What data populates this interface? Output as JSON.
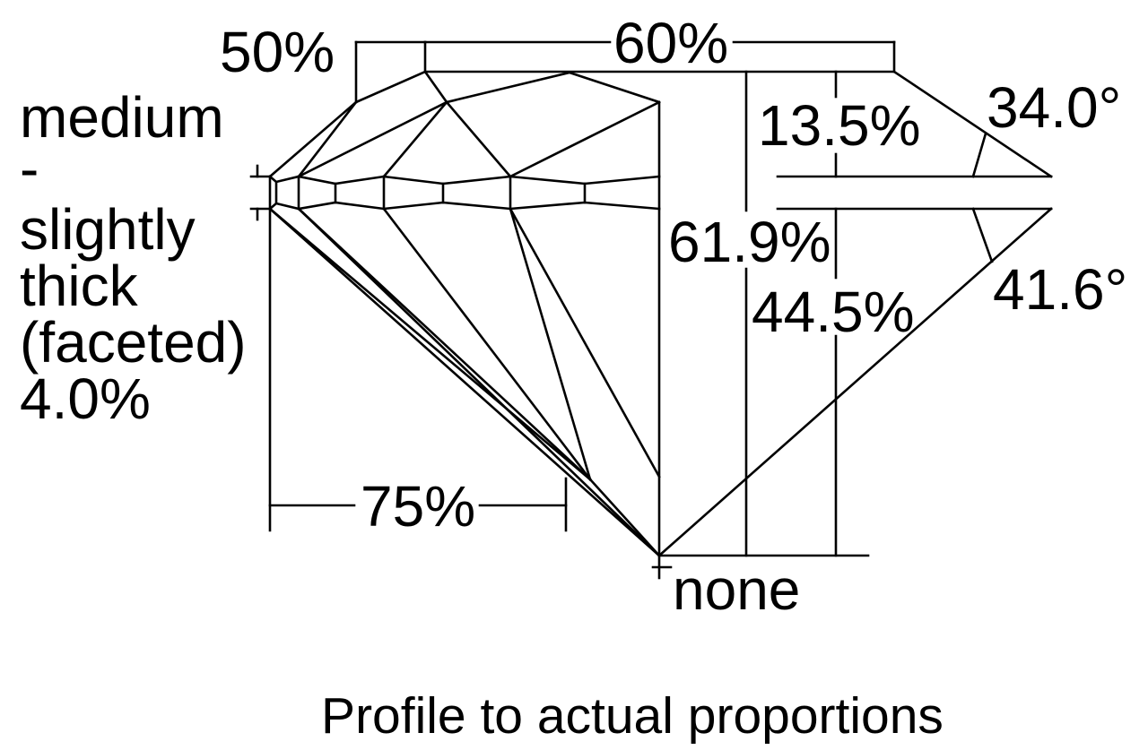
{
  "labels": {
    "table_width_pct": "60%",
    "star_length_pct": "50%",
    "girdle": [
      "medium",
      "-",
      "slightly",
      "thick",
      "(faceted)",
      "4.0%"
    ],
    "crown_height_pct": "13.5%",
    "crown_angle": "34.0°",
    "total_depth_pct": "61.9%",
    "pavilion_angle": "41.6°",
    "pavilion_depth_pct": "44.5%",
    "lower_half_length_pct": "75%",
    "culet": "none"
  },
  "caption": "Profile to actual proportions"
}
